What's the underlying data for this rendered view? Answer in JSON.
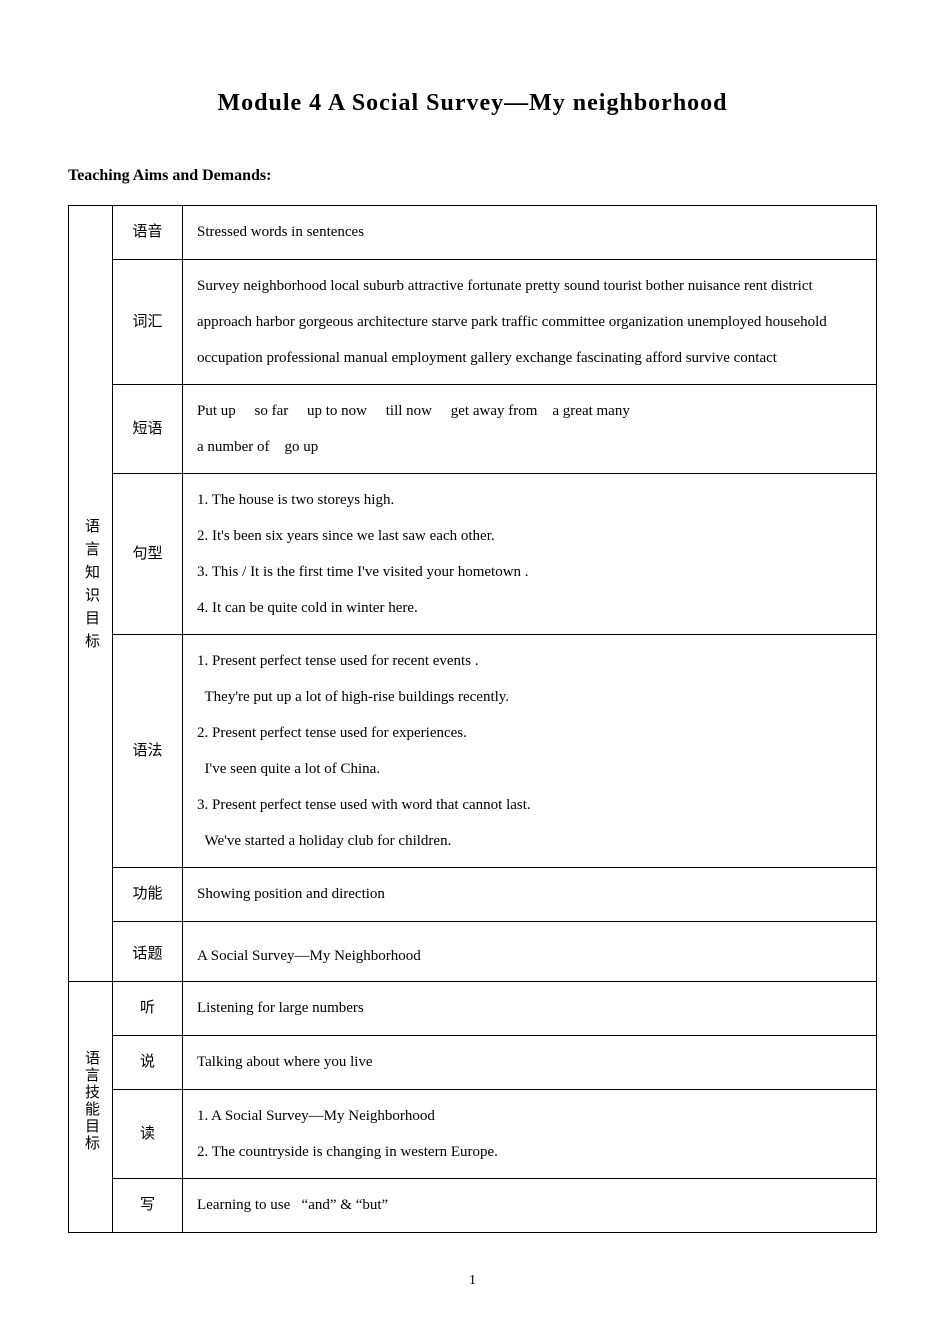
{
  "title": "Module 4 A Social Survey—My neighborhood",
  "subtitle": "Teaching Aims and Demands:",
  "page_number": "1",
  "sections": {
    "language_knowledge": {
      "header": "语言知识目标",
      "rows": {
        "phonetics": {
          "label": "语音",
          "content": "Stressed words in sentences"
        },
        "vocabulary": {
          "label": "词汇",
          "content": "Survey neighborhood local suburb attractive fortunate pretty sound tourist bother nuisance rent district approach harbor gorgeous architecture starve park traffic committee organization unemployed household occupation professional manual employment gallery exchange fascinating afford survive contact"
        },
        "phrases": {
          "label": "短语",
          "line1": "Put up     so far     up to now     till now     get away from    a great many",
          "line2": "a number of    go up"
        },
        "sentence_patterns": {
          "label": "句型",
          "line1": "1. The house is two storeys high.",
          "line2": "2. It's been six years since we last saw each other.",
          "line3": "3. This / It is the first time I've visited your hometown .",
          "line4": "4. It can be quite cold in winter here."
        },
        "grammar": {
          "label": "语法",
          "line1": "1. Present perfect tense used for recent events .",
          "line2": "  They're put up a lot of high-rise buildings recently.",
          "line3": "2. Present perfect tense used for experiences.",
          "line4": "  I've seen quite a lot of China.",
          "line5": "3. Present perfect tense used with word that cannot last.",
          "line6": "  We've started a holiday club for children."
        },
        "function": {
          "label": "功能",
          "content": "Showing position and direction"
        },
        "topic": {
          "label": "话题",
          "content": "A Social Survey—My Neighborhood"
        }
      }
    },
    "language_skills": {
      "header": "语言技能目标",
      "rows": {
        "listening": {
          "label": "听",
          "content": "Listening for large numbers"
        },
        "speaking": {
          "label": "说",
          "content": "Talking about where you live"
        },
        "reading": {
          "label": "读",
          "line1": "1. A Social Survey—My Neighborhood",
          "line2": "2. The countryside is changing in western Europe."
        },
        "writing": {
          "label": "写",
          "content": "Learning to use   “and” & “but”"
        }
      }
    }
  }
}
